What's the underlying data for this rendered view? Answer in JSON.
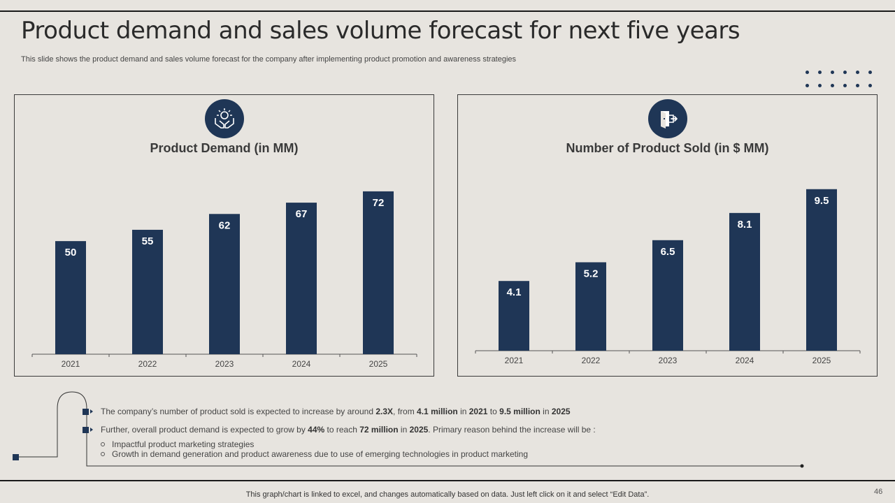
{
  "title": "Product demand and sales volume forecast for next five years",
  "subtitle": "This slide shows the product demand and sales volume forecast for the company after implementing product promotion and awareness strategies",
  "colors": {
    "bar": "#1f3656",
    "background": "#e7e4df",
    "text": "#3a3a3a"
  },
  "chart_data": [
    {
      "type": "bar",
      "title": "Product Demand (in MM)",
      "icon": "hands-holding-idea-icon",
      "categories": [
        "2021",
        "2022",
        "2023",
        "2024",
        "2025"
      ],
      "values": [
        50,
        55,
        62,
        67,
        72
      ],
      "value_labels": [
        "50",
        "55",
        "62",
        "67",
        "72"
      ],
      "ylim": [
        0,
        80
      ],
      "grid": false,
      "xlabel": "",
      "ylabel": ""
    },
    {
      "type": "bar",
      "title": "Number of Product Sold (in $ MM)",
      "icon": "exit-door-icon",
      "categories": [
        "2021",
        "2022",
        "2023",
        "2024",
        "2025"
      ],
      "values": [
        4.1,
        5.2,
        6.5,
        8.1,
        9.5
      ],
      "value_labels": [
        "4.1",
        "5.2",
        "6.5",
        "8.1",
        "9.5"
      ],
      "ylim": [
        0,
        10.6
      ],
      "grid": false,
      "xlabel": "",
      "ylabel": ""
    }
  ],
  "bullets": {
    "b1": {
      "t1": "The company’s number of product sold is expected to increase by around ",
      "k1": "2.3X",
      "t2": ", from ",
      "k2": "4.1 million",
      "t3": "  in ",
      "k3": "2021",
      "t4": " to ",
      "k4": "9.5 million",
      "t5": "  in ",
      "k5": "2025"
    },
    "b2": {
      "t1": "Further, overall product demand is expected to grow by ",
      "k1": "44%",
      "t2": " to reach ",
      "k2": "72 million",
      "t3": "  in ",
      "k3": "2025",
      "t4": ". Primary reason behind the increase will be :"
    },
    "sub": [
      "Impactful product marketing strategies",
      "Growth in demand generation and product awareness due to use of emerging technologies in product marketing"
    ]
  },
  "footer": "This graph/chart is linked to excel,  and changes automatically based on data. Just left click on it and select “Edit Data”.",
  "page_number": "46"
}
